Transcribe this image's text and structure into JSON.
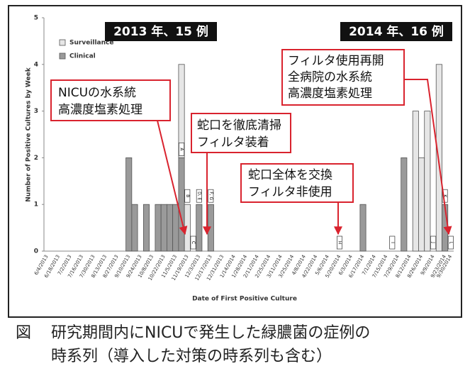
{
  "chart_data": {
    "type": "bar",
    "stacked": true,
    "y_label": "Number of Positive Cultures by Week",
    "x_label": "Date of First Positive Culture",
    "categories": [
      "6/4/2013",
      null,
      "6/18/2013",
      null,
      "7/2/2013",
      null,
      "7/16/2013",
      null,
      "7/30/2013",
      null,
      "8/13/2013",
      null,
      "8/27/2013",
      null,
      "9/10/2013",
      null,
      "9/24/2013",
      null,
      "10/8/2013",
      null,
      "10/22/2013",
      null,
      "11/5/2013",
      null,
      "11/19/2013",
      null,
      "12/3/2013",
      null,
      "12/17/2013",
      null,
      "12/31/2013",
      null,
      "1/14/2014",
      null,
      "1/28/2014",
      null,
      "2/11/2014",
      null,
      "2/25/2014",
      null,
      "3/11/2014",
      null,
      "3/25/2014",
      null,
      "4/8/2014",
      null,
      "4/22/2014",
      null,
      "5/6/2014",
      null,
      "5/20/2014",
      null,
      "6/3/2014",
      null,
      "6/17/2014",
      null,
      "7/1/2014",
      null,
      "7/15/2014",
      null,
      "7/29/2014",
      null,
      "8/12/2014",
      null,
      "8/26/2014",
      null,
      "9/9/2014",
      null,
      "9/23/2014",
      "9/30/2014"
    ],
    "series": [
      {
        "name": "Surveillance",
        "color": "#e6e6e6",
        "values": [
          0,
          0,
          0,
          0,
          0,
          0,
          0,
          0,
          0,
          0,
          0,
          0,
          0,
          0,
          0,
          0,
          0,
          0,
          0,
          0,
          0,
          0,
          0,
          2,
          1,
          0,
          0,
          0,
          0,
          0,
          0,
          0,
          0,
          0,
          0,
          0,
          0,
          0,
          0,
          0,
          0,
          0,
          0,
          0,
          0,
          0,
          0,
          0,
          0,
          0,
          0,
          0,
          0,
          0,
          0,
          0,
          0,
          0,
          0,
          0,
          0,
          0,
          0,
          3,
          2,
          3,
          0,
          4,
          0,
          0
        ]
      },
      {
        "name": "Clinical",
        "color": "#9a9a9a",
        "values": [
          0,
          0,
          0,
          0,
          0,
          0,
          0,
          0,
          0,
          0,
          0,
          0,
          0,
          0,
          2,
          1,
          0,
          1,
          0,
          1,
          1,
          1,
          1,
          2,
          0,
          0,
          1,
          0,
          1,
          0,
          0,
          0,
          0,
          0,
          0,
          0,
          0,
          0,
          0,
          0,
          0,
          0,
          0,
          0,
          0,
          0,
          0,
          0,
          0,
          0,
          0,
          0,
          0,
          0,
          1,
          0,
          0,
          0,
          0,
          0,
          0,
          2,
          0,
          0,
          0,
          0,
          0,
          0,
          1,
          0
        ]
      }
    ],
    "bar_letters": [
      null,
      null,
      null,
      null,
      null,
      null,
      null,
      null,
      null,
      null,
      null,
      null,
      null,
      null,
      null,
      null,
      null,
      null,
      null,
      null,
      null,
      null,
      null,
      "A",
      "B",
      "C",
      "D, E",
      null,
      "F, G",
      null,
      null,
      null,
      null,
      null,
      null,
      null,
      null,
      null,
      null,
      null,
      null,
      null,
      null,
      null,
      null,
      null,
      null,
      null,
      null,
      null,
      "H",
      null,
      null,
      null,
      null,
      null,
      null,
      null,
      null,
      "I",
      null,
      null,
      null,
      null,
      null,
      null,
      "J",
      null,
      "K",
      "L"
    ],
    "ylim": [
      0,
      5
    ],
    "yticks": [
      0,
      1,
      2,
      3,
      4,
      5
    ],
    "grid": false
  },
  "headers": [
    "2013 年、15 例",
    "2014 年、16 例"
  ],
  "callouts": [
    {
      "lines": [
        "NICUの水系統",
        "高濃度塩素処理"
      ]
    },
    {
      "lines": [
        "蛇口を徹底清掃",
        "フィルタ装着"
      ]
    },
    {
      "lines": [
        "蛇口全体を交換",
        "フィルタ非使用"
      ]
    },
    {
      "lines": [
        "フィルタ使用再開",
        "全病院の水系統",
        "高濃度塩素処理"
      ]
    }
  ],
  "caption": {
    "label": "図",
    "lines": [
      "研究期間内にNICUで発生した緑膿菌の症例の",
      "時系列（導入した対策の時系列も含む）"
    ]
  }
}
